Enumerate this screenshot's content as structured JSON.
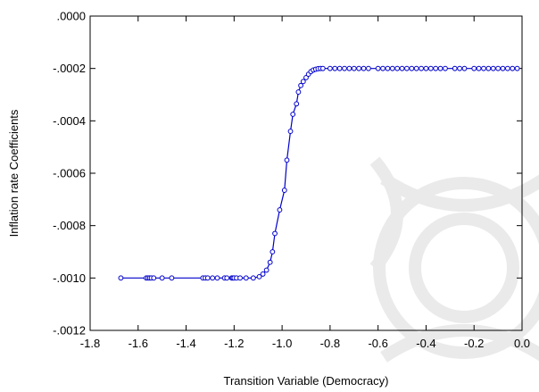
{
  "chart_data": {
    "type": "line",
    "title": "",
    "xlabel": "Transition Variable (Democracy)",
    "ylabel": "Inflation rate Coefficients",
    "xlim": [
      -1.8,
      0.0
    ],
    "ylim": [
      -0.0012,
      0.0
    ],
    "xticks": [
      -1.8,
      -1.6,
      -1.4,
      -1.2,
      -1.0,
      -0.8,
      -0.6,
      -0.4,
      -0.2,
      0.0
    ],
    "xtick_labels": [
      "-1.8",
      "-1.6",
      "-1.4",
      "-1.2",
      "-1.0",
      "-0.8",
      "-0.6",
      "-0.4",
      "-0.2",
      "0.0"
    ],
    "yticks": [
      0.0,
      -0.0002,
      -0.0004,
      -0.0006,
      -0.0008,
      -0.001,
      -0.0012
    ],
    "ytick_labels": [
      ".0000",
      "-.0002",
      "-.0004",
      "-.0006",
      "-.0008",
      "-.0010",
      "-.0012"
    ],
    "grid": false,
    "line_color": "#0000cc",
    "marker": "open-circle",
    "series": [
      {
        "x": [
          -1.672,
          -1.566,
          -1.559,
          -1.552,
          -1.545,
          -1.535,
          -1.5,
          -1.46,
          -1.33,
          -1.32,
          -1.31,
          -1.29,
          -1.27,
          -1.24,
          -1.23,
          -1.21,
          -1.205,
          -1.2,
          -1.19,
          -1.175,
          -1.15,
          -1.12,
          -1.095,
          -1.08,
          -1.065,
          -1.05,
          -1.04,
          -1.03,
          -1.01,
          -0.99,
          -0.98,
          -0.965,
          -0.955,
          -0.94,
          -0.932,
          -0.922,
          -0.912,
          -0.9,
          -0.89,
          -0.88,
          -0.87,
          -0.86,
          -0.85,
          -0.84,
          -0.83,
          -0.8,
          -0.78,
          -0.76,
          -0.74,
          -0.72,
          -0.7,
          -0.68,
          -0.66,
          -0.64,
          -0.6,
          -0.58,
          -0.56,
          -0.54,
          -0.52,
          -0.5,
          -0.48,
          -0.46,
          -0.44,
          -0.42,
          -0.4,
          -0.38,
          -0.36,
          -0.34,
          -0.32,
          -0.28,
          -0.26,
          -0.24,
          -0.2,
          -0.18,
          -0.16,
          -0.14,
          -0.12,
          -0.1,
          -0.08,
          -0.06,
          -0.04,
          -0.02
        ],
        "y": [
          -0.001,
          -0.001,
          -0.001,
          -0.001,
          -0.001,
          -0.001,
          -0.001,
          -0.001,
          -0.001,
          -0.001,
          -0.001,
          -0.001,
          -0.001,
          -0.001,
          -0.001,
          -0.001,
          -0.001,
          -0.001,
          -0.001,
          -0.001,
          -0.001,
          -0.001,
          -0.000995,
          -0.000985,
          -0.00097,
          -0.00094,
          -0.0009,
          -0.00083,
          -0.00074,
          -0.000665,
          -0.00055,
          -0.00044,
          -0.000375,
          -0.000335,
          -0.00029,
          -0.000265,
          -0.00025,
          -0.000235,
          -0.000222,
          -0.000212,
          -0.000206,
          -0.000203,
          -0.000201,
          -0.0002,
          -0.0002,
          -0.0002,
          -0.0002,
          -0.0002,
          -0.0002,
          -0.0002,
          -0.0002,
          -0.0002,
          -0.0002,
          -0.0002,
          -0.0002,
          -0.0002,
          -0.0002,
          -0.0002,
          -0.0002,
          -0.0002,
          -0.0002,
          -0.0002,
          -0.0002,
          -0.0002,
          -0.0002,
          -0.0002,
          -0.0002,
          -0.0002,
          -0.0002,
          -0.0002,
          -0.0002,
          -0.0002,
          -0.0002,
          -0.0002,
          -0.0002,
          -0.0002,
          -0.0002,
          -0.0002,
          -0.0002,
          -0.0002,
          -0.0002,
          -0.0002
        ]
      }
    ]
  }
}
